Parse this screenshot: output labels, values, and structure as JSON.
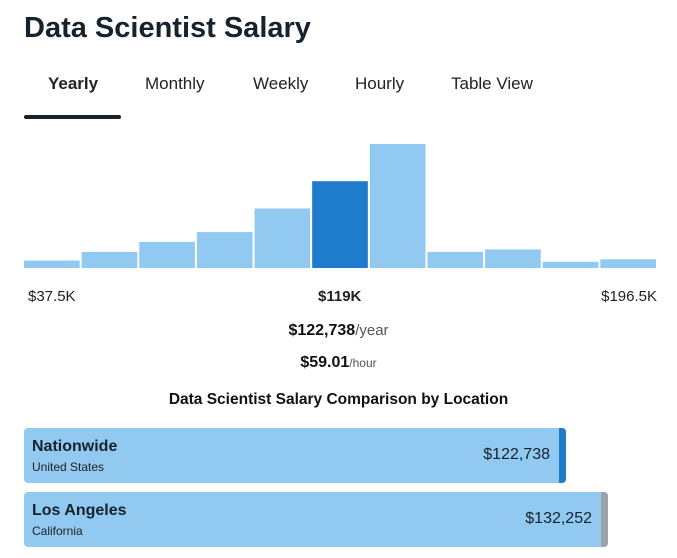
{
  "page": {
    "title": "Data Scientist Salary"
  },
  "tabs": [
    {
      "label": "Yearly",
      "active": true
    },
    {
      "label": "Monthly",
      "active": false
    },
    {
      "label": "Weekly",
      "active": false
    },
    {
      "label": "Hourly",
      "active": false
    },
    {
      "label": "Table View",
      "active": false
    }
  ],
  "colors": {
    "bar": "#92c9f1",
    "bar_highlight": "#1f7bcb",
    "nationwide_accent": "#1f7bcb",
    "los_angeles_accent": "#9aa3a9"
  },
  "chart_data": {
    "type": "bar",
    "title": "",
    "categories": [
      "1",
      "2",
      "3",
      "4",
      "5",
      "6",
      "7",
      "8",
      "9",
      "10",
      "11"
    ],
    "values": [
      6,
      13,
      21,
      29,
      48,
      70,
      100,
      13,
      15,
      5,
      7
    ],
    "highlight_index": 5,
    "value_unit": "relative frequency",
    "ylim": [
      0,
      100
    ],
    "axis_labels": {
      "min": "$37.5K",
      "mid": "$119K",
      "max": "$196.5K"
    }
  },
  "pay": {
    "yearly_amount": "$122,738",
    "yearly_unit": "/year",
    "hourly_amount": "$59.01",
    "hourly_unit": "/hour"
  },
  "comparison": {
    "title": "Data Scientist Salary Comparison by Location",
    "locations": [
      {
        "name": "Nationwide",
        "sub": "United States",
        "value": "$122,738",
        "amount": 122738
      },
      {
        "name": "Los Angeles",
        "sub": "California",
        "value": "$132,252",
        "amount": 132252
      }
    ]
  }
}
